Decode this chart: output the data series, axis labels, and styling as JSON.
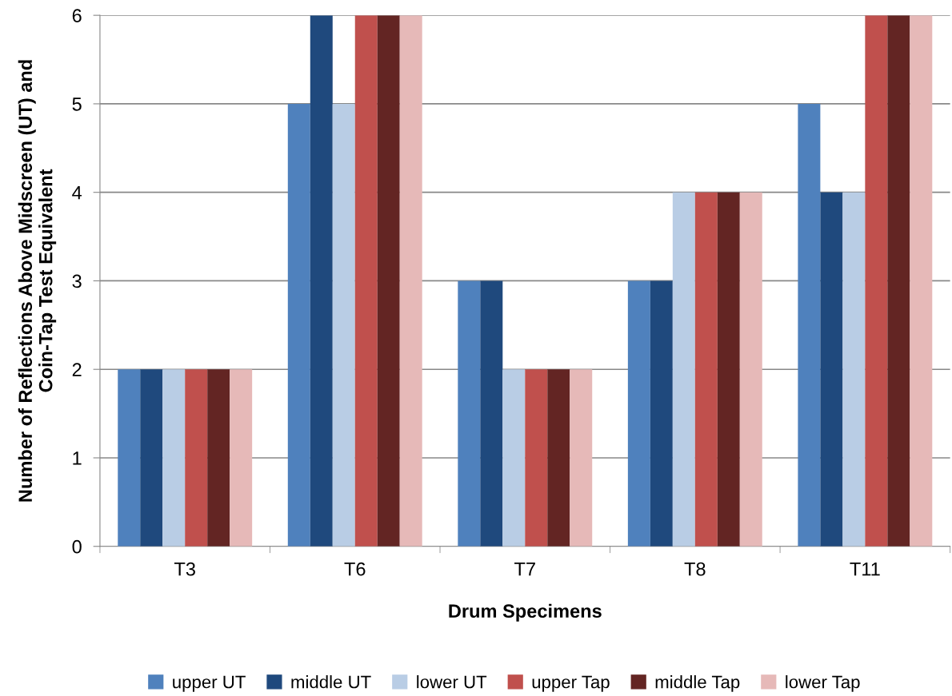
{
  "chart_data": {
    "type": "bar",
    "xlabel": "Drum Specimens",
    "ylabel": "Number of Reflections Above Midscreen (UT) and\nCoin-Tap Test Equivalent",
    "categories": [
      "T3",
      "T6",
      "T7",
      "T8",
      "T11"
    ],
    "series": [
      {
        "name": "upper UT",
        "color": "#4f81bd",
        "values": [
          2,
          5,
          3,
          3,
          5
        ]
      },
      {
        "name": "middle UT",
        "color": "#1f497d",
        "values": [
          2,
          6,
          3,
          3,
          4
        ]
      },
      {
        "name": "lower UT",
        "color": "#b9cde5",
        "values": [
          2,
          5,
          2,
          4,
          4
        ]
      },
      {
        "name": "upper Tap",
        "color": "#c0504d",
        "values": [
          2,
          6,
          2,
          4,
          6
        ]
      },
      {
        "name": "middle Tap",
        "color": "#632523",
        "values": [
          2,
          6,
          2,
          4,
          6
        ]
      },
      {
        "name": "lower Tap",
        "color": "#e6b9b8",
        "values": [
          2,
          6,
          2,
          4,
          6
        ]
      }
    ],
    "ylim": [
      0,
      6
    ],
    "yticks": [
      0,
      1,
      2,
      3,
      4,
      5,
      6
    ],
    "grid": "y",
    "legend": "bottom"
  }
}
